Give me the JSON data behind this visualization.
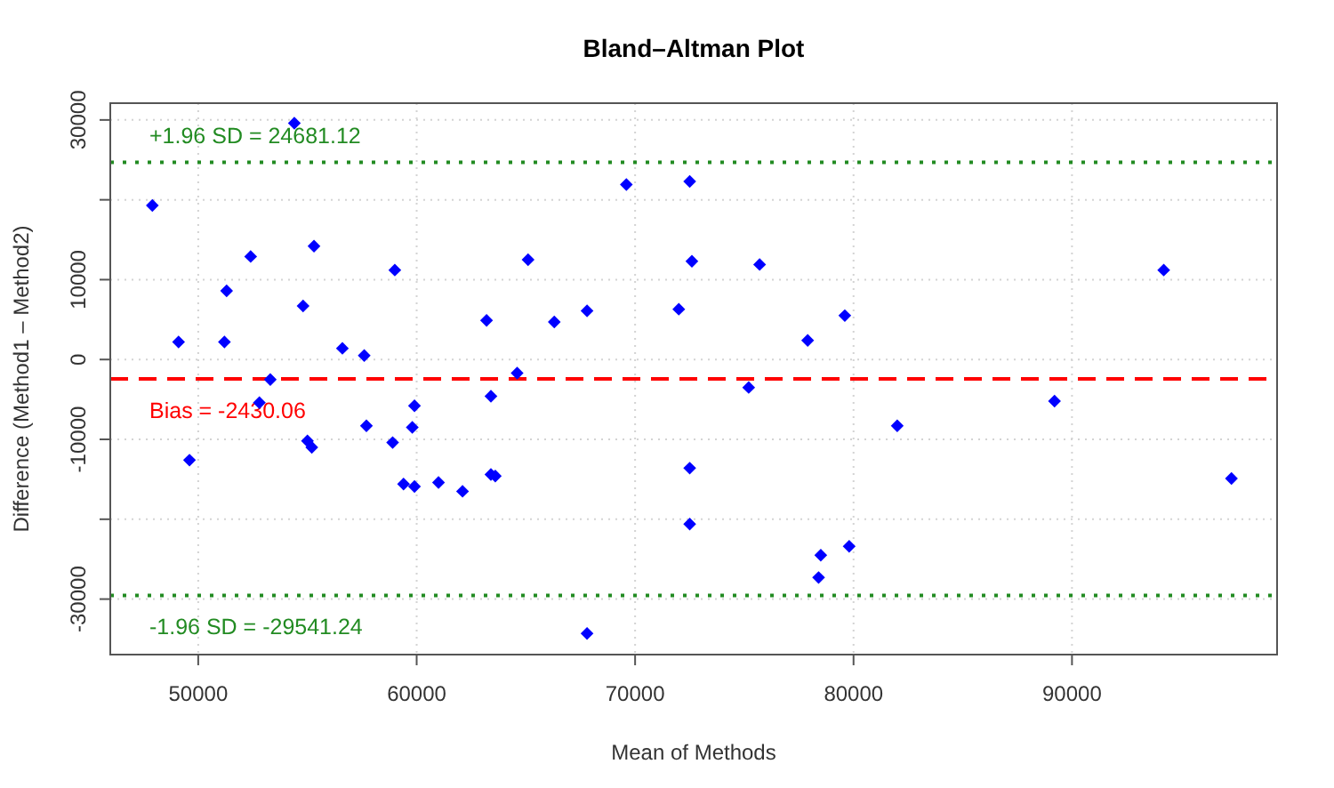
{
  "chart_data": {
    "type": "scatter",
    "title": "Bland–Altman Plot",
    "xlabel": "Mean of Methods",
    "ylabel": "Difference (Method1 – Method2)",
    "x": [
      47900,
      49100,
      49600,
      51200,
      51300,
      52400,
      52800,
      53300,
      54400,
      54800,
      55000,
      55200,
      55300,
      56600,
      57600,
      57700,
      58900,
      59000,
      59800,
      59900,
      59400,
      59900,
      61000,
      62100,
      63200,
      63400,
      63400,
      63600,
      64600,
      65100,
      66300,
      67800,
      67800,
      69600,
      72000,
      72500,
      72600,
      72500,
      72500,
      75200,
      75700,
      77900,
      79600,
      78500,
      78400,
      79800,
      82000,
      89200,
      94200,
      97300
    ],
    "series": [
      {
        "color": "#0000ff",
        "values": [
          19300,
          2200,
          -12600,
          2200,
          8600,
          12900,
          -5400,
          -2500,
          29600,
          6700,
          -10200,
          -11000,
          14200,
          1400,
          500,
          -8300,
          -10400,
          11200,
          -8500,
          -5800,
          -15600,
          -15900,
          -15400,
          -16500,
          4900,
          -4600,
          -14400,
          -14600,
          -1700,
          12500,
          4700,
          6100,
          -34300,
          21900,
          6300,
          22300,
          12300,
          -13600,
          -20600,
          -3500,
          11900,
          2400,
          5500,
          -24500,
          -27300,
          -23400,
          -8300,
          -5200,
          11200,
          -14900
        ]
      }
    ],
    "marker": "diamond",
    "xlim": [
      45974,
      99389
    ],
    "xticks": [
      50000,
      60000,
      70000,
      80000,
      90000
    ],
    "ylim": [
      -36950,
      32100
    ],
    "yticks": [
      -30000,
      {
        "value": -20000,
        "label": null
      },
      -10000,
      0,
      10000,
      {
        "value": 20000,
        "label": null
      },
      30000
    ],
    "grid": true,
    "ref_lines": [
      {
        "axis": "y",
        "value": 24681.12,
        "label": "+1.96 SD = 24681.12",
        "color": "#228b22",
        "line_style": "dotted"
      },
      {
        "axis": "y",
        "value": -2430.06,
        "label": "Bias = -2430.06",
        "color": "#ff0000",
        "line_style": "dashed"
      },
      {
        "axis": "y",
        "value": -29541.24,
        "label": "-1.96 SD = -29541.24",
        "color": "#228b22",
        "line_style": "dotted"
      }
    ]
  }
}
